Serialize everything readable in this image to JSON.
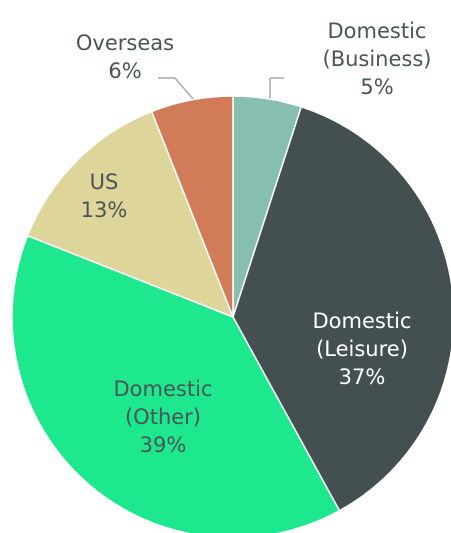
{
  "chart_data": {
    "type": "pie",
    "categories": [
      "Domestic (Business)",
      "Domestic (Leisure)",
      "Domestic (Other)",
      "US",
      "Overseas"
    ],
    "values": [
      5,
      37,
      39,
      13,
      6
    ],
    "value_labels": [
      "5%",
      "37%",
      "39%",
      "13%",
      "6%"
    ],
    "colors": [
      "#86bfb0",
      "#434f51",
      "#1de88e",
      "#ddd59a",
      "#d17b58"
    ]
  }
}
